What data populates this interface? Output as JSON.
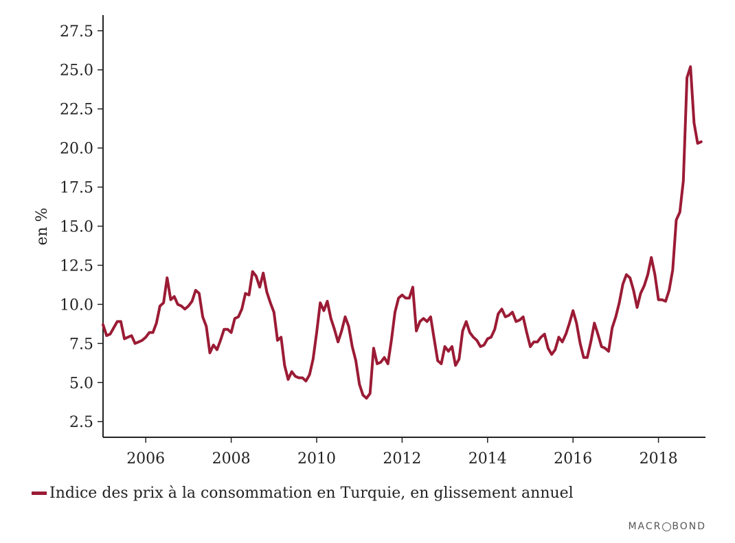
{
  "chart_data": {
    "type": "line",
    "title": "",
    "xlabel": "",
    "ylabel": "en %",
    "ylim": [
      1.5,
      28.5
    ],
    "xlim": [
      2005.0,
      2019.1
    ],
    "grid": false,
    "legend_position": "bottom-left",
    "y_ticks": [
      "2.5",
      "5.0",
      "7.5",
      "10.0",
      "12.5",
      "15.0",
      "17.5",
      "20.0",
      "22.5",
      "25.0",
      "27.5"
    ],
    "x_ticks": [
      "2006",
      "2008",
      "2010",
      "2012",
      "2014",
      "2016",
      "2018"
    ],
    "series": [
      {
        "name": "Indice des prix à la consommation en Turquie, en glissement annuel",
        "color": "#9b1b35",
        "points": [
          [
            2005.0,
            8.7
          ],
          [
            2005.083,
            8.0
          ],
          [
            2005.167,
            8.1
          ],
          [
            2005.25,
            8.5
          ],
          [
            2005.333,
            8.9
          ],
          [
            2005.417,
            8.9
          ],
          [
            2005.5,
            7.8
          ],
          [
            2005.583,
            7.9
          ],
          [
            2005.667,
            8.0
          ],
          [
            2005.75,
            7.5
          ],
          [
            2005.833,
            7.6
          ],
          [
            2005.917,
            7.7
          ],
          [
            2006.0,
            7.9
          ],
          [
            2006.083,
            8.2
          ],
          [
            2006.167,
            8.2
          ],
          [
            2006.25,
            8.8
          ],
          [
            2006.333,
            9.9
          ],
          [
            2006.417,
            10.1
          ],
          [
            2006.5,
            11.7
          ],
          [
            2006.583,
            10.3
          ],
          [
            2006.667,
            10.5
          ],
          [
            2006.75,
            10.0
          ],
          [
            2006.833,
            9.9
          ],
          [
            2006.917,
            9.7
          ],
          [
            2007.0,
            9.9
          ],
          [
            2007.083,
            10.2
          ],
          [
            2007.167,
            10.9
          ],
          [
            2007.25,
            10.7
          ],
          [
            2007.333,
            9.2
          ],
          [
            2007.417,
            8.6
          ],
          [
            2007.5,
            6.9
          ],
          [
            2007.583,
            7.4
          ],
          [
            2007.667,
            7.1
          ],
          [
            2007.75,
            7.7
          ],
          [
            2007.833,
            8.4
          ],
          [
            2007.917,
            8.4
          ],
          [
            2008.0,
            8.2
          ],
          [
            2008.083,
            9.1
          ],
          [
            2008.167,
            9.2
          ],
          [
            2008.25,
            9.7
          ],
          [
            2008.333,
            10.7
          ],
          [
            2008.417,
            10.6
          ],
          [
            2008.5,
            12.1
          ],
          [
            2008.583,
            11.8
          ],
          [
            2008.667,
            11.1
          ],
          [
            2008.75,
            12.0
          ],
          [
            2008.833,
            10.8
          ],
          [
            2008.917,
            10.1
          ],
          [
            2009.0,
            9.5
          ],
          [
            2009.083,
            7.7
          ],
          [
            2009.167,
            7.9
          ],
          [
            2009.25,
            6.1
          ],
          [
            2009.333,
            5.2
          ],
          [
            2009.417,
            5.7
          ],
          [
            2009.5,
            5.4
          ],
          [
            2009.583,
            5.3
          ],
          [
            2009.667,
            5.3
          ],
          [
            2009.75,
            5.1
          ],
          [
            2009.833,
            5.5
          ],
          [
            2009.917,
            6.5
          ],
          [
            2010.0,
            8.2
          ],
          [
            2010.083,
            10.1
          ],
          [
            2010.167,
            9.6
          ],
          [
            2010.25,
            10.2
          ],
          [
            2010.333,
            9.1
          ],
          [
            2010.417,
            8.4
          ],
          [
            2010.5,
            7.6
          ],
          [
            2010.583,
            8.3
          ],
          [
            2010.667,
            9.2
          ],
          [
            2010.75,
            8.6
          ],
          [
            2010.833,
            7.3
          ],
          [
            2010.917,
            6.4
          ],
          [
            2011.0,
            4.9
          ],
          [
            2011.083,
            4.2
          ],
          [
            2011.167,
            4.0
          ],
          [
            2011.25,
            4.3
          ],
          [
            2011.333,
            7.2
          ],
          [
            2011.417,
            6.2
          ],
          [
            2011.5,
            6.3
          ],
          [
            2011.583,
            6.6
          ],
          [
            2011.667,
            6.2
          ],
          [
            2011.75,
            7.7
          ],
          [
            2011.833,
            9.5
          ],
          [
            2011.917,
            10.4
          ],
          [
            2012.0,
            10.6
          ],
          [
            2012.083,
            10.4
          ],
          [
            2012.167,
            10.4
          ],
          [
            2012.25,
            11.1
          ],
          [
            2012.333,
            8.3
          ],
          [
            2012.417,
            8.9
          ],
          [
            2012.5,
            9.1
          ],
          [
            2012.583,
            8.9
          ],
          [
            2012.667,
            9.2
          ],
          [
            2012.75,
            7.8
          ],
          [
            2012.833,
            6.4
          ],
          [
            2012.917,
            6.2
          ],
          [
            2013.0,
            7.3
          ],
          [
            2013.083,
            7.0
          ],
          [
            2013.167,
            7.3
          ],
          [
            2013.25,
            6.1
          ],
          [
            2013.333,
            6.5
          ],
          [
            2013.417,
            8.3
          ],
          [
            2013.5,
            8.9
          ],
          [
            2013.583,
            8.2
          ],
          [
            2013.667,
            7.9
          ],
          [
            2013.75,
            7.7
          ],
          [
            2013.833,
            7.3
          ],
          [
            2013.917,
            7.4
          ],
          [
            2014.0,
            7.8
          ],
          [
            2014.083,
            7.9
          ],
          [
            2014.167,
            8.4
          ],
          [
            2014.25,
            9.4
          ],
          [
            2014.333,
            9.7
          ],
          [
            2014.417,
            9.2
          ],
          [
            2014.5,
            9.3
          ],
          [
            2014.583,
            9.5
          ],
          [
            2014.667,
            8.9
          ],
          [
            2014.75,
            9.0
          ],
          [
            2014.833,
            9.2
          ],
          [
            2014.917,
            8.2
          ],
          [
            2015.0,
            7.3
          ],
          [
            2015.083,
            7.6
          ],
          [
            2015.167,
            7.6
          ],
          [
            2015.25,
            7.9
          ],
          [
            2015.333,
            8.1
          ],
          [
            2015.417,
            7.2
          ],
          [
            2015.5,
            6.8
          ],
          [
            2015.583,
            7.1
          ],
          [
            2015.667,
            7.9
          ],
          [
            2015.75,
            7.6
          ],
          [
            2015.833,
            8.1
          ],
          [
            2015.917,
            8.8
          ],
          [
            2016.0,
            9.6
          ],
          [
            2016.083,
            8.8
          ],
          [
            2016.167,
            7.5
          ],
          [
            2016.25,
            6.6
          ],
          [
            2016.333,
            6.6
          ],
          [
            2016.417,
            7.6
          ],
          [
            2016.5,
            8.8
          ],
          [
            2016.583,
            8.1
          ],
          [
            2016.667,
            7.3
          ],
          [
            2016.75,
            7.2
          ],
          [
            2016.833,
            7.0
          ],
          [
            2016.917,
            8.5
          ],
          [
            2017.0,
            9.2
          ],
          [
            2017.083,
            10.1
          ],
          [
            2017.167,
            11.3
          ],
          [
            2017.25,
            11.9
          ],
          [
            2017.333,
            11.7
          ],
          [
            2017.417,
            10.9
          ],
          [
            2017.5,
            9.8
          ],
          [
            2017.583,
            10.7
          ],
          [
            2017.667,
            11.2
          ],
          [
            2017.75,
            11.9
          ],
          [
            2017.833,
            13.0
          ],
          [
            2017.917,
            11.9
          ],
          [
            2018.0,
            10.3
          ],
          [
            2018.083,
            10.3
          ],
          [
            2018.167,
            10.2
          ],
          [
            2018.25,
            10.9
          ],
          [
            2018.333,
            12.2
          ],
          [
            2018.417,
            15.4
          ],
          [
            2018.5,
            15.9
          ],
          [
            2018.583,
            17.9
          ],
          [
            2018.667,
            24.5
          ],
          [
            2018.75,
            25.2
          ],
          [
            2018.833,
            21.6
          ],
          [
            2018.917,
            20.3
          ],
          [
            2019.0,
            20.4
          ]
        ]
      }
    ]
  },
  "legend": {
    "label": "Indice des prix à la consommation en Turquie, en glissement annuel",
    "color": "#9b1b35"
  },
  "watermark": {
    "left": "MACR",
    "right": "BOND"
  }
}
